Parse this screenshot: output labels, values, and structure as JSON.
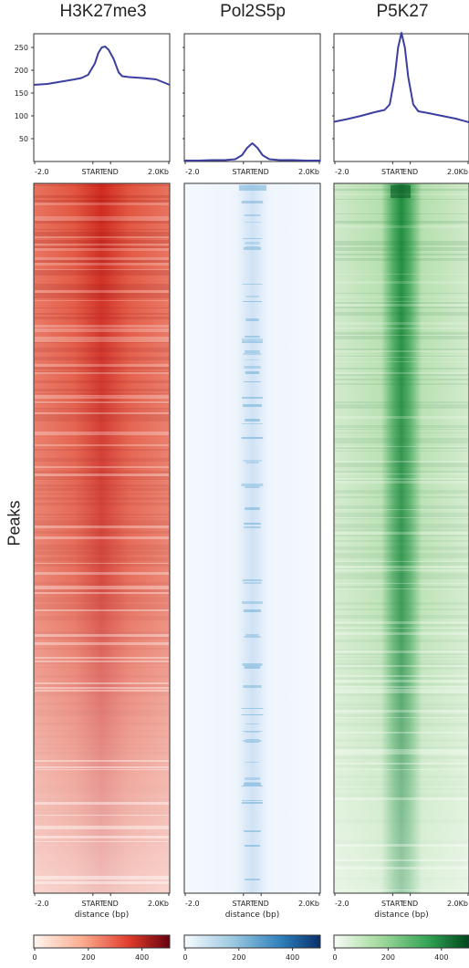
{
  "panels": [
    {
      "id": "h3k27me3",
      "title": "H3K27me3",
      "colormap": "reds",
      "accent": "#b2182b"
    },
    {
      "id": "pol2s5p",
      "title": "Pol2S5p",
      "colormap": "blues",
      "accent": "#2166ac"
    },
    {
      "id": "p5k27",
      "title": "P5K27",
      "colormap": "greens",
      "accent": "#1b7837"
    }
  ],
  "row_label": "Peaks",
  "x_tick_labels": [
    "-2.0",
    "START",
    "END",
    "2.0Kb"
  ],
  "x_axis_label": "distance (bp)",
  "colorbar_ticks": [
    "0",
    "200",
    "400"
  ],
  "colors": {
    "profile_line": "#3b3fa0"
  },
  "chart_data": [
    {
      "type": "line",
      "panel": "H3K27me3",
      "x": [
        -2.0,
        -1.6,
        -1.2,
        -0.8,
        -0.6,
        -0.4,
        -0.2,
        -0.1,
        0.0,
        0.1,
        0.2,
        0.35,
        0.5,
        0.6,
        0.8,
        1.2,
        1.6,
        2.0
      ],
      "values": [
        168,
        170,
        175,
        180,
        183,
        190,
        215,
        238,
        250,
        252,
        245,
        225,
        195,
        187,
        185,
        183,
        180,
        168
      ],
      "ylim": [
        0,
        280
      ],
      "yticks": [
        50,
        100,
        150,
        200,
        250
      ],
      "xticks": [
        "-2.0",
        "START",
        "END",
        "2.0Kb"
      ]
    },
    {
      "type": "line",
      "panel": "Pol2S5p",
      "x": [
        -2.0,
        -1.6,
        -1.2,
        -0.8,
        -0.5,
        -0.3,
        -0.15,
        0.0,
        0.15,
        0.3,
        0.5,
        0.8,
        1.2,
        1.6,
        2.0
      ],
      "values": [
        2,
        2,
        3,
        3,
        5,
        14,
        30,
        40,
        30,
        14,
        5,
        3,
        3,
        2,
        2
      ],
      "ylim": [
        0,
        280
      ],
      "xticks": [
        "-2.0",
        "START",
        "END",
        "2.0Kb"
      ]
    },
    {
      "type": "line",
      "panel": "P5K27",
      "x": [
        -2.0,
        -1.6,
        -1.2,
        -0.8,
        -0.5,
        -0.35,
        -0.2,
        -0.1,
        0.0,
        0.1,
        0.2,
        0.35,
        0.5,
        0.8,
        1.2,
        1.6,
        2.0
      ],
      "values": [
        87,
        93,
        100,
        108,
        113,
        125,
        185,
        250,
        282,
        250,
        185,
        125,
        110,
        106,
        100,
        94,
        86
      ],
      "ylim": [
        0,
        280
      ],
      "xticks": [
        "-2.0",
        "START",
        "END",
        "2.0Kb"
      ]
    },
    {
      "type": "heatmap",
      "panel": "H3K27me3",
      "ylabel": "Peaks",
      "xlabel": "distance (bp)",
      "xticks": [
        "-2.0",
        "START",
        "END",
        "2.0Kb"
      ],
      "colorbar": {
        "ticks": [
          0,
          200,
          400
        ],
        "range": [
          0,
          500
        ]
      }
    },
    {
      "type": "heatmap",
      "panel": "Pol2S5p",
      "xlabel": "distance (bp)",
      "xticks": [
        "-2.0",
        "START",
        "END",
        "2.0Kb"
      ],
      "colorbar": {
        "ticks": [
          0,
          200,
          400
        ],
        "range": [
          0,
          500
        ]
      }
    },
    {
      "type": "heatmap",
      "panel": "P5K27",
      "xlabel": "distance (bp)",
      "xticks": [
        "-2.0",
        "START",
        "END",
        "2.0Kb"
      ],
      "colorbar": {
        "ticks": [
          0,
          200,
          400
        ],
        "range": [
          0,
          500
        ]
      }
    }
  ]
}
